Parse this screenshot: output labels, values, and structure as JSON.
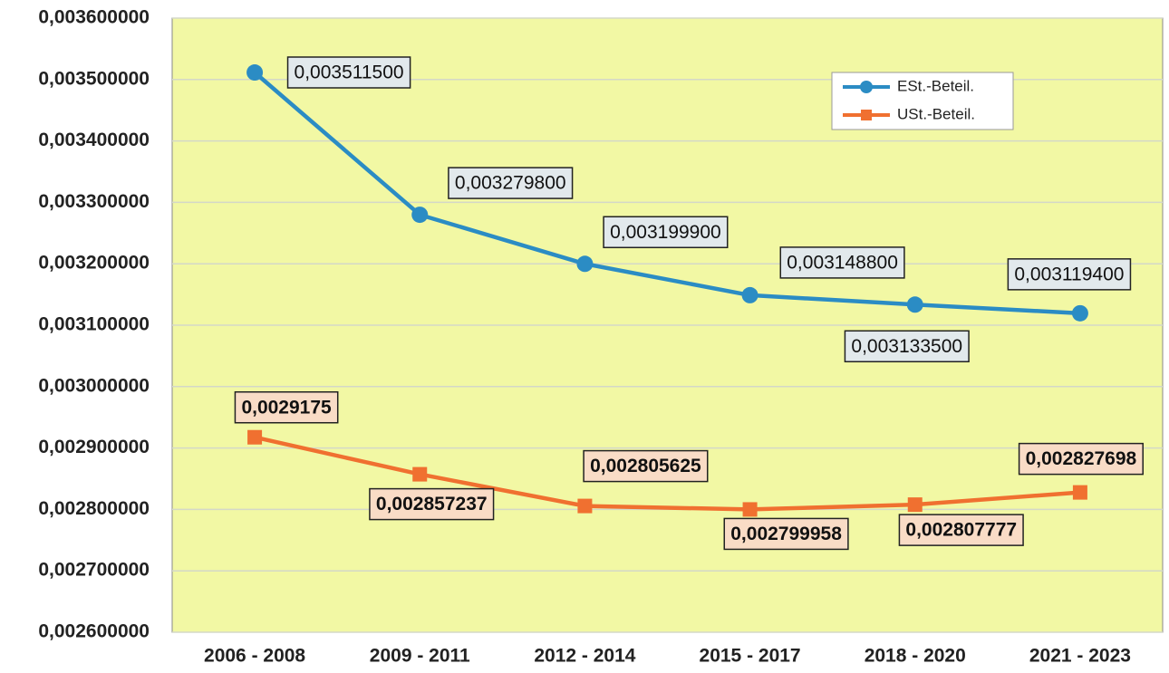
{
  "chart_data": {
    "type": "line",
    "categories": [
      "2006 - 2008",
      "2009 - 2011",
      "2012 - 2014",
      "2015 - 2017",
      "2018 - 2020",
      "2021 - 2023"
    ],
    "series": [
      {
        "name": "ESt.-Beteil.",
        "color": "#2b8cc4",
        "values": [
          0.0035115,
          0.0032798,
          0.0031999,
          0.0031488,
          0.0031335,
          0.0031194
        ],
        "value_labels": [
          "0,003511500",
          "0,003279800",
          "0,003199900",
          "0,003148800",
          "0,003133500",
          "0,003119400"
        ]
      },
      {
        "name": "USt.-Beteil.",
        "color": "#f07030",
        "values": [
          0.0029175,
          0.002857237,
          0.002805625,
          0.002799958,
          0.002807777,
          0.002827698
        ],
        "value_labels": [
          "0,0029175",
          "0,002857237",
          "0,002805625",
          "0,002799958",
          "0,002807777",
          "0,002827698"
        ]
      }
    ],
    "ylim": [
      0.0026,
      0.0036
    ],
    "yticks": [
      {
        "value": 0.0026,
        "label": "0,002600000"
      },
      {
        "value": 0.0027,
        "label": "0,002700000"
      },
      {
        "value": 0.0028,
        "label": "0,002800000"
      },
      {
        "value": 0.0029,
        "label": "0,002900000"
      },
      {
        "value": 0.003,
        "label": "0,003000000"
      },
      {
        "value": 0.0031,
        "label": "0,003100000"
      },
      {
        "value": 0.0032,
        "label": "0,003200000"
      },
      {
        "value": 0.0033,
        "label": "0,003300000"
      },
      {
        "value": 0.0034,
        "label": "0,003400000"
      },
      {
        "value": 0.0035,
        "label": "0,003500000"
      },
      {
        "value": 0.0036,
        "label": "0,003600000"
      }
    ],
    "grid": true,
    "legend": "upper right",
    "background": "#f2f8a4"
  }
}
